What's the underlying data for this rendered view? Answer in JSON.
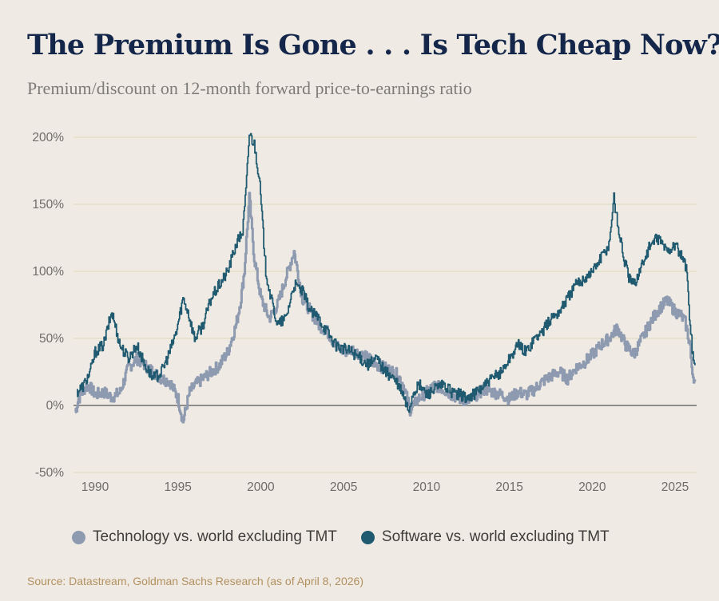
{
  "title": "The Premium Is Gone . . . Is Tech Cheap Now?",
  "subtitle": "Premium/discount on 12-month forward price-to-earnings ratio",
  "source": "Source: Datastream, Goldman Sachs Research (as of April 8, 2026)",
  "colors": {
    "technology": "#8e9ab0",
    "software": "#1f5a70",
    "background": "#efebe4",
    "grid": "#dcd8b8",
    "zero_line": "#6f6d6a"
  },
  "chart_data": {
    "type": "line",
    "title": "The Premium Is Gone . . . Is Tech Cheap Now?",
    "subtitle": "Premium/discount on 12-month forward price-to-earnings ratio",
    "xlabel": "",
    "ylabel": "",
    "xlim": [
      1988.7,
      2026.3
    ],
    "ylim": [
      -50,
      200
    ],
    "x_ticks": [
      1990,
      1995,
      2000,
      2005,
      2010,
      2015,
      2020,
      2025
    ],
    "x_tick_labels": [
      "1990",
      "1995",
      "2000",
      "2005",
      "2010",
      "2015",
      "2020",
      "2025"
    ],
    "y_ticks": [
      -50,
      0,
      50,
      100,
      150,
      200
    ],
    "y_tick_labels": [
      "-50%",
      "0%",
      "50%",
      "100%",
      "150%",
      "200%"
    ],
    "grid": "horizontal",
    "legend_position": "bottom",
    "series": [
      {
        "name": "Technology vs. world excluding TMT",
        "color": "#8e9ab0",
        "x": [
          1988.8,
          1989.0,
          1989.3,
          1989.6,
          1990.0,
          1990.5,
          1991.0,
          1991.5,
          1992.0,
          1992.5,
          1993.0,
          1993.5,
          1994.0,
          1994.5,
          1995.0,
          1995.3,
          1995.7,
          1996.0,
          1996.5,
          1997.0,
          1997.5,
          1998.0,
          1998.5,
          1998.8,
          1999.0,
          1999.3,
          1999.6,
          2000.0,
          2000.5,
          2001.0,
          2001.5,
          2002.0,
          2002.5,
          2003.0,
          2003.5,
          2004.0,
          2004.5,
          2005.0,
          2005.5,
          2006.0,
          2006.5,
          2007.0,
          2007.5,
          2008.0,
          2008.3,
          2008.6,
          2009.0,
          2009.5,
          2010.0,
          2010.5,
          2011.0,
          2011.5,
          2012.0,
          2012.5,
          2013.0,
          2013.5,
          2014.0,
          2014.5,
          2015.0,
          2015.5,
          2016.0,
          2016.5,
          2017.0,
          2017.5,
          2018.0,
          2018.5,
          2019.0,
          2019.5,
          2020.0,
          2020.5,
          2021.0,
          2021.5,
          2022.0,
          2022.5,
          2023.0,
          2023.5,
          2024.0,
          2024.5,
          2025.0,
          2025.3,
          2025.6,
          2025.9,
          2026.0,
          2026.2
        ],
        "values": [
          -5,
          5,
          12,
          15,
          8,
          10,
          6,
          10,
          28,
          35,
          30,
          25,
          20,
          18,
          5,
          -12,
          10,
          15,
          20,
          25,
          30,
          40,
          60,
          80,
          100,
          155,
          110,
          80,
          65,
          75,
          95,
          115,
          80,
          70,
          60,
          55,
          45,
          40,
          42,
          38,
          35,
          30,
          28,
          25,
          22,
          15,
          -3,
          5,
          10,
          15,
          12,
          8,
          5,
          3,
          8,
          12,
          10,
          8,
          5,
          10,
          8,
          12,
          18,
          22,
          25,
          20,
          28,
          32,
          38,
          45,
          50,
          58,
          45,
          38,
          50,
          62,
          72,
          78,
          70,
          68,
          62,
          45,
          25,
          18
        ]
      },
      {
        "name": "Software vs. world excluding TMT",
        "color": "#1f5a70",
        "x": [
          1988.9,
          1989.3,
          1989.7,
          1990.0,
          1990.5,
          1991.0,
          1991.5,
          1992.0,
          1992.5,
          1993.0,
          1993.5,
          1994.0,
          1994.5,
          1994.9,
          1995.3,
          1995.6,
          1996.0,
          1996.5,
          1997.0,
          1997.5,
          1998.0,
          1998.5,
          1998.9,
          1999.1,
          1999.3,
          1999.6,
          1999.9,
          2000.3,
          2000.6,
          2001.0,
          2001.5,
          2002.0,
          2002.5,
          2003.0,
          2003.5,
          2004.0,
          2004.5,
          2005.0,
          2005.5,
          2006.0,
          2006.5,
          2007.0,
          2007.5,
          2008.0,
          2008.5,
          2008.9,
          2009.2,
          2009.6,
          2010.0,
          2010.5,
          2011.0,
          2011.5,
          2012.0,
          2012.5,
          2013.0,
          2013.5,
          2014.0,
          2014.5,
          2015.0,
          2015.5,
          2016.0,
          2016.5,
          2017.0,
          2017.5,
          2018.0,
          2018.5,
          2019.0,
          2019.5,
          2020.0,
          2020.5,
          2021.0,
          2021.3,
          2021.6,
          2021.9,
          2022.2,
          2022.5,
          2023.0,
          2023.5,
          2024.0,
          2024.5,
          2025.0,
          2025.4,
          2025.7,
          2025.9,
          2026.1,
          2026.2
        ],
        "values": [
          10,
          15,
          25,
          40,
          45,
          70,
          45,
          35,
          45,
          30,
          20,
          25,
          40,
          55,
          80,
          70,
          50,
          60,
          80,
          90,
          100,
          120,
          130,
          160,
          203,
          195,
          170,
          100,
          80,
          60,
          65,
          90,
          85,
          70,
          65,
          55,
          45,
          42,
          40,
          35,
          30,
          35,
          25,
          20,
          10,
          -4,
          10,
          15,
          8,
          12,
          15,
          10,
          8,
          5,
          10,
          15,
          20,
          25,
          35,
          45,
          40,
          50,
          55,
          65,
          70,
          80,
          90,
          95,
          100,
          110,
          120,
          155,
          130,
          110,
          95,
          90,
          105,
          120,
          125,
          115,
          120,
          110,
          100,
          60,
          32,
          30
        ]
      }
    ]
  }
}
